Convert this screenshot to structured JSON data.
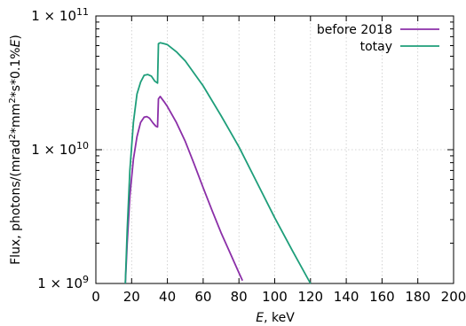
{
  "chart_data": {
    "type": "line",
    "xlabel": {
      "var": "E",
      "rest": ", keV"
    },
    "ylabel": {
      "pre": "Flux, photons/(mrad",
      "sup1": "2",
      "mid": "*mm",
      "sup2": "2",
      "post": "*s*0.1%",
      "var": "E",
      "end": ")"
    },
    "xlim": [
      0,
      200
    ],
    "ylim": [
      1000000000.0,
      100000000000.0
    ],
    "yscale": "log",
    "grid": true,
    "legend_position": "top-right",
    "x_ticks": [
      "0",
      "20",
      "40",
      "60",
      "80",
      "100",
      "120",
      "140",
      "160",
      "180",
      "200"
    ],
    "x_tick_values": [
      0,
      20,
      40,
      60,
      80,
      100,
      120,
      140,
      160,
      180,
      200
    ],
    "y_ticks": [
      {
        "value": 1000000000.0,
        "base": "1 × 10",
        "exp": "9"
      },
      {
        "value": 10000000000.0,
        "base": "1 × 10",
        "exp": "10"
      },
      {
        "value": 100000000000.0,
        "base": "1 × 10",
        "exp": "11"
      }
    ],
    "series": [
      {
        "name": "before 2018",
        "color": "#8b2fa8",
        "x": [
          16.5,
          17.5,
          19,
          21,
          23,
          25,
          27,
          28.5,
          30,
          32,
          33.5,
          34.5,
          35,
          36,
          38,
          40,
          45,
          50,
          55,
          60,
          65,
          70,
          75,
          80,
          82
        ],
        "y": [
          1000000000.0,
          2000000000.0,
          4500000000.0,
          8500000000.0,
          12500000000.0,
          16000000000.0,
          17500000000.0,
          17700000000.0,
          17200000000.0,
          15800000000.0,
          15000000000.0,
          14800000000.0,
          24000000000.0,
          25000000000.0,
          23000000000.0,
          21000000000.0,
          16000000000.0,
          11500000000.0,
          7800000000.0,
          5200000000.0,
          3500000000.0,
          2400000000.0,
          1700000000.0,
          1200000000.0,
          1050000000.0
        ]
      },
      {
        "name": "totay",
        "color": "#1e9e7a",
        "x": [
          16.5,
          17.5,
          19,
          21,
          23,
          25,
          27,
          29,
          31,
          33,
          34.5,
          35,
          36,
          38,
          40,
          45,
          50,
          60,
          70,
          80,
          90,
          100,
          110,
          120
        ],
        "y": [
          1000000000.0,
          2500000000.0,
          7000000000.0,
          16000000000.0,
          26000000000.0,
          32000000000.0,
          36000000000.0,
          36500000000.0,
          35500000000.0,
          32500000000.0,
          31500000000.0,
          62000000000.0,
          63000000000.0,
          62000000000.0,
          61000000000.0,
          54000000000.0,
          46000000000.0,
          30000000000.0,
          18000000000.0,
          10500000000.0,
          5700000000.0,
          3100000000.0,
          1750000000.0,
          1000000000.0
        ]
      }
    ]
  }
}
